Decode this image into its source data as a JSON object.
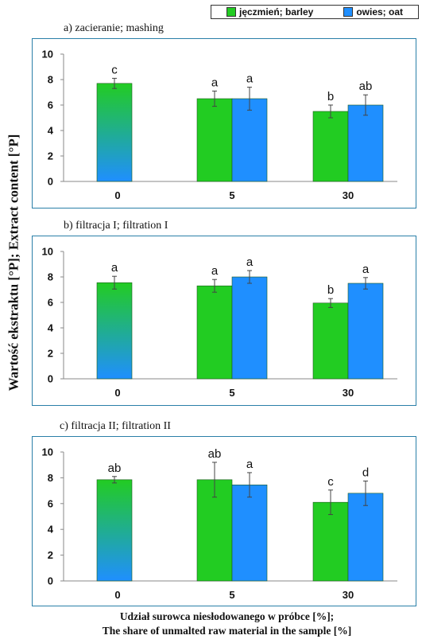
{
  "legend": {
    "barley_label": "jęczmień; barley",
    "oat_label": "owies; oat"
  },
  "y_axis_title": "Wartość ekstraktu [°P]; Extract content [°P]",
  "x_axis_title_line1": "Udział surowca niesłodowanego w próbce [%];",
  "x_axis_title_line2": "The share of unmalted raw material in the sample [%]",
  "colors": {
    "barley": "#22cc22",
    "oat": "#1f8fff",
    "frame": "#2a7fa8",
    "axis": "#888888",
    "mixed_top": "#22cc22",
    "mixed_bottom": "#1f8fff"
  },
  "chart_data": [
    {
      "type": "bar",
      "title": "a)  zacieranie; mashing",
      "categories": [
        "0",
        "5",
        "30"
      ],
      "ylim": [
        0,
        10
      ],
      "yticks": [
        0,
        2,
        4,
        6,
        8,
        10
      ],
      "grid": false,
      "legend_position": "top-right",
      "series": [
        {
          "name": "jęczmień; barley",
          "values": [
            7.7,
            6.5,
            5.5
          ],
          "errors": [
            0.4,
            0.6,
            0.5
          ],
          "letters": [
            "c",
            "a",
            "b"
          ]
        },
        {
          "name": "owies; oat",
          "values": [
            null,
            6.5,
            6.0
          ],
          "errors": [
            null,
            0.9,
            0.8
          ],
          "letters": [
            null,
            "a",
            "ab"
          ]
        }
      ]
    },
    {
      "type": "bar",
      "title": "b)  filtracja I; filtration I",
      "categories": [
        "0",
        "5",
        "30"
      ],
      "ylim": [
        0,
        10
      ],
      "yticks": [
        0,
        2,
        4,
        6,
        8,
        10
      ],
      "grid": false,
      "series": [
        {
          "name": "jęczmień; barley",
          "values": [
            7.55,
            7.3,
            5.95
          ],
          "errors": [
            0.5,
            0.5,
            0.35
          ],
          "letters": [
            "a",
            "a",
            "b"
          ]
        },
        {
          "name": "owies; oat",
          "values": [
            null,
            8.0,
            7.5
          ],
          "errors": [
            null,
            0.5,
            0.45
          ],
          "letters": [
            null,
            "a",
            "a"
          ]
        }
      ]
    },
    {
      "type": "bar",
      "title": "c)  filtracja II; filtration II",
      "categories": [
        "0",
        "5",
        "30"
      ],
      "ylim": [
        0,
        10
      ],
      "yticks": [
        0,
        2,
        4,
        6,
        8,
        10
      ],
      "grid": false,
      "series": [
        {
          "name": "jęczmień; barley",
          "values": [
            7.85,
            7.85,
            6.1
          ],
          "errors": [
            0.25,
            1.35,
            0.95
          ],
          "letters": [
            "ab",
            "ab",
            "c"
          ]
        },
        {
          "name": "owies; oat",
          "values": [
            null,
            7.45,
            6.8
          ],
          "errors": [
            null,
            0.95,
            0.95
          ],
          "letters": [
            null,
            "a",
            "d"
          ]
        }
      ]
    }
  ]
}
